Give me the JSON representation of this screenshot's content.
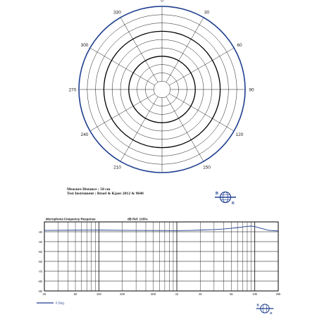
{
  "measurement_info": {
    "distance_label": "Measure Distance :",
    "distance_value": "50 cm",
    "instrument_label": "Test Instrument :",
    "instrument_value": "Bruel & Kjaer 2012 & 9640"
  },
  "logo": {
    "letters": [
      "B",
      "K"
    ]
  },
  "chart_data": [
    {
      "type": "polar",
      "title": "",
      "angle_labels": [
        "0",
        "30",
        "60",
        "90",
        "120",
        "150",
        "180",
        "210",
        "240",
        "270",
        "300",
        "330"
      ],
      "rings": 10,
      "bold_rings": [
        4,
        7
      ],
      "series": [
        {
          "r": [
            1,
            1,
            1,
            1,
            1,
            1,
            1,
            1,
            1,
            1,
            1,
            1
          ],
          "theta": [
            0,
            30,
            60,
            90,
            120,
            150,
            180,
            210,
            240,
            270,
            300,
            330
          ]
        }
      ],
      "colors": {
        "grid": "#000000",
        "trace": "#1f3f8f"
      }
    },
    {
      "type": "line",
      "title": "Microphone Frequency Response",
      "ref_label": "dB Ref. 1V/Pa",
      "x_scale": "log",
      "xlim": [
        20,
        20000
      ],
      "x_ticks": [
        "20",
        "50",
        "100",
        "200",
        "500",
        "1k",
        "2k",
        "5k",
        "10k",
        "20k"
      ],
      "x_tick_values": [
        20,
        50,
        100,
        200,
        500,
        1000,
        2000,
        5000,
        10000,
        20000
      ],
      "ylim": [
        -90,
        -20
      ],
      "y_ticks": [
        "-30",
        "-40",
        "-50",
        "-60",
        "-70",
        "-80",
        "-90"
      ],
      "y_tick_values": [
        -30,
        -40,
        -50,
        -60,
        -70,
        -80,
        -90
      ],
      "grid": true,
      "legend": "bottom-left",
      "series": [
        {
          "name": "0 Deg.",
          "color": "#1f3f8f",
          "x": [
            20,
            50,
            100,
            200,
            500,
            1000,
            1500,
            2000,
            3000,
            4000,
            5000,
            6000,
            7000,
            8000,
            9000,
            10000,
            12000,
            15000,
            20000
          ],
          "y": [
            -28.6,
            -28.4,
            -28.3,
            -28.5,
            -28.7,
            -28.8,
            -28.6,
            -28.3,
            -27.8,
            -27.2,
            -26.5,
            -25.8,
            -25.1,
            -24.5,
            -24.2,
            -24.8,
            -26.5,
            -28.5,
            -29.2
          ]
        }
      ]
    }
  ]
}
